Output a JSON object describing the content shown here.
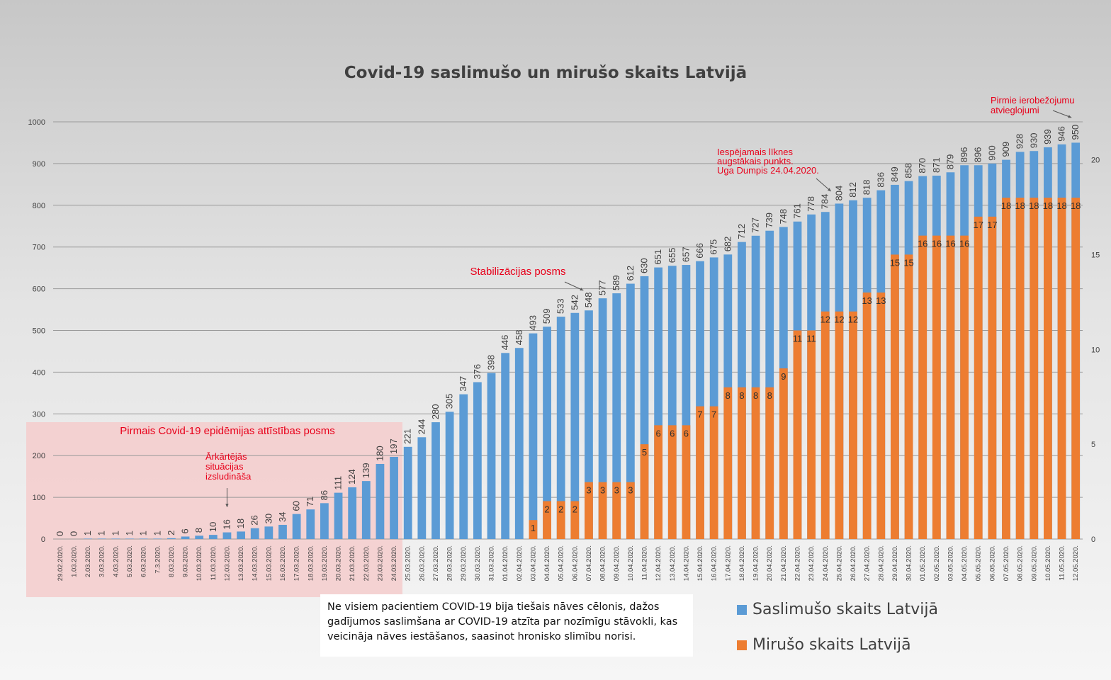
{
  "chart_data": {
    "type": "bar",
    "title": "Covid-19 saslimušo un mirušo skaits Latvijā",
    "xlabel": "",
    "ylabel": "",
    "ylim": [
      0,
      1000
    ],
    "y_ticks": [
      "0",
      "100",
      "200",
      "300",
      "400",
      "500",
      "600",
      "700",
      "800",
      "900",
      "1000"
    ],
    "y2lim": [
      0,
      22
    ],
    "y2_ticks": [
      "0",
      "5",
      "10",
      "15",
      "20"
    ],
    "categories": [
      "29.02.2020.",
      "1.03.2020.",
      "2.03.2020.",
      "3.03.2020.",
      "4.03.2020.",
      "5.03.2020.",
      "6.03.2020.",
      "7.3.2020.",
      "8.03.2020.",
      "9.03.2020.",
      "10.03.2020.",
      "11.03.2020.",
      "12.03.2020.",
      "13.03.2020.",
      "14.03.2020.",
      "15.03.2020.",
      "16.03.2020.",
      "17.03.2020.",
      "18.03.2020.",
      "19.03.2020.",
      "20.03.2020.",
      "21.03.2020.",
      "22.03.2020.",
      "23.03.2020.",
      "24.03.2020.",
      "25.03.2020.",
      "26.03.2020.",
      "27.03.2020.",
      "28.03.2020.",
      "29.03.2020.",
      "30.03.2020.",
      "31.03.2020.",
      "01.04.2020.",
      "02.04.2020.",
      "03.04.2020.",
      "04.04.2020.",
      "05.04.2020.",
      "06.04.2020.",
      "07.04.2020.",
      "08.04.2020.",
      "09.04.2020.",
      "10.04.2020.",
      "11.04.2020.",
      "12.04.2020.",
      "13.04.2020.",
      "14.04.2020.",
      "15.04.2020.",
      "16.04.2020.",
      "17.04.2020.",
      "18.04.2020.",
      "19.04.2020.",
      "20.04.2020.",
      "21.04.2020.",
      "22.04.2020.",
      "23.04.2020.",
      "24.04.2020.",
      "25.04.2020.",
      "26.04.2020.",
      "27.04.2020.",
      "28.04.2020.",
      "29.04.2020.",
      "30.04.2020.",
      "01.05.2020.",
      "02.05.2020.",
      "03.05.2020.",
      "04.05.2020.",
      "05.05.2020.",
      "06.05.2020.",
      "07.05.2020.",
      "08.05.2020.",
      "09.05.2020.",
      "10.05.2020.",
      "11.05.2020.",
      "12.05.2020."
    ],
    "series": [
      {
        "name": "Saslimušo skaits Latvijā",
        "axis": "left",
        "color": "#5b9bd5",
        "values": [
          0,
          0,
          1,
          1,
          1,
          1,
          1,
          1,
          2,
          6,
          8,
          10,
          16,
          18,
          26,
          30,
          34,
          60,
          71,
          86,
          111,
          124,
          139,
          180,
          197,
          221,
          244,
          280,
          305,
          347,
          376,
          398,
          446,
          458,
          493,
          509,
          533,
          542,
          548,
          577,
          589,
          612,
          630,
          651,
          655,
          657,
          666,
          675,
          682,
          712,
          727,
          739,
          748,
          761,
          778,
          784,
          804,
          812,
          818,
          836,
          849,
          858,
          870,
          871,
          879,
          896,
          896,
          900,
          909,
          928,
          930,
          939,
          946,
          950
        ]
      },
      {
        "name": "Mirušo skaits Latvijā",
        "axis": "right",
        "color": "#ed7d31",
        "values": [
          0,
          0,
          0,
          0,
          0,
          0,
          0,
          0,
          0,
          0,
          0,
          0,
          0,
          0,
          0,
          0,
          0,
          0,
          0,
          0,
          0,
          0,
          0,
          0,
          0,
          0,
          0,
          0,
          0,
          0,
          0,
          0,
          0,
          0,
          1,
          2,
          2,
          2,
          3,
          3,
          3,
          3,
          5,
          6,
          6,
          6,
          7,
          7,
          8,
          8,
          8,
          8,
          9,
          11,
          11,
          12,
          12,
          12,
          13,
          13,
          15,
          15,
          16,
          16,
          16,
          16,
          17,
          17,
          18,
          18,
          18,
          18,
          18,
          18
        ]
      }
    ],
    "annotations": [
      {
        "text": "Pirmais Covid-19 epidēmijas attīstības posms"
      },
      {
        "text": "Ārkārtējās situācijas izsludināša",
        "lines": [
          "Ārkārtējās",
          "situācijas",
          "izsludināša"
        ],
        "category": "12.03.2020."
      },
      {
        "text": "Stabilizācijas posms",
        "category": "06.04.2020."
      },
      {
        "text": "Iespējamais līknes augstākais punkts. Uga Dumpis 24.04.2020.",
        "lines": [
          "Iespējamais līknes",
          "augstākais punkts.",
          "Uga Dumpis 24.04.2020."
        ],
        "category": "24.04.2020."
      },
      {
        "text": "Pirmie ierobežojumu atvieglojumi",
        "lines": [
          "Pirmie ierobežojumu",
          "atvieglojumi"
        ],
        "category": "12.05.2020."
      }
    ]
  },
  "colors": {
    "cases": "#5b9bd5",
    "deaths": "#ed7d31",
    "annotation": "#e8001a",
    "phase_shade": "#f4cccc"
  },
  "note": "Ne visiem pacientiem COVID-19 bija tiešais nāves cēlonis, dažos gadījumos saslimšana ar COVID-19 atzīta par nozīmīgu stāvokli, kas veicināja nāves iestāšanos, saasinot hronisko slimību norisi.",
  "legend": {
    "cases": "Saslimušo skaits Latvijā",
    "deaths": "Mirušo skaits Latvijā"
  }
}
